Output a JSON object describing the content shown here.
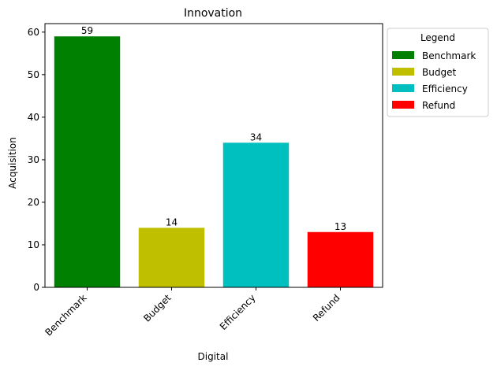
{
  "chart_data": {
    "type": "bar",
    "title": "Innovation",
    "xlabel": "Digital",
    "ylabel": "Acquisition",
    "categories": [
      "Benchmark",
      "Budget",
      "Efficiency",
      "Refund"
    ],
    "values": [
      59,
      14,
      34,
      13
    ],
    "colors": [
      "#008000",
      "#bfbf00",
      "#00bfbf",
      "#ff0000"
    ],
    "ylim": [
      0,
      62
    ],
    "yticks": [
      0,
      10,
      20,
      30,
      40,
      50,
      60
    ],
    "grid": false,
    "legend": {
      "title": "Legend",
      "placement": "outside-right-top",
      "entries": [
        "Benchmark",
        "Budget",
        "Efficiency",
        "Refund"
      ]
    }
  }
}
